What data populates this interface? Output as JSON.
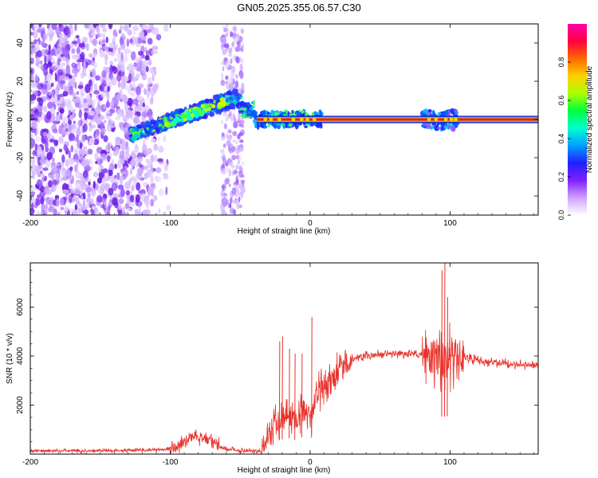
{
  "title": "GN05.2025.355.06.57.C30",
  "colors": {
    "snr_line": "#e8312a",
    "background": "#ffffff",
    "colorbar": [
      "#ff00aa",
      "#ff0040",
      "#ff6a00",
      "#ffd000",
      "#aaff00",
      "#00ff40",
      "#00ffd0",
      "#00a0ff",
      "#2020ff",
      "#8020ff",
      "#d0a0ff",
      "#ffffff"
    ]
  },
  "chart_data": [
    {
      "type": "heatmap",
      "name": "spectrogram",
      "xlabel": "Height of straight line (km)",
      "ylabel": "Frequency (Hz)",
      "xlim": [
        -200,
        163
      ],
      "ylim": [
        -50,
        50
      ],
      "xticks": [
        -200,
        -100,
        0,
        100
      ],
      "xtick_labels": [
        "-200",
        "-100",
        "0",
        "100"
      ],
      "yticks": [
        -40,
        -20,
        0,
        20,
        40
      ],
      "ytick_labels": [
        "-40",
        "-20",
        "0",
        "20",
        "40"
      ],
      "colorbar": {
        "label": "Normalized spectral amplitude",
        "range": [
          0,
          1
        ],
        "ticks": [
          0.0,
          0.2,
          0.4,
          0.6,
          0.8
        ],
        "tick_labels": [
          "0.0",
          "0.2",
          "0.4",
          "0.6",
          "0.8"
        ]
      },
      "features": {
        "noise_region_x": [
          -200,
          -105
        ],
        "noise_band_x": [
          -63,
          -48
        ],
        "rising_track": {
          "x": [
            -128,
            -50
          ],
          "y": [
            -8,
            12
          ]
        },
        "carrier_line": {
          "x": [
            -50,
            163
          ],
          "y": 0
        }
      }
    },
    {
      "type": "line",
      "name": "snr",
      "xlabel": "Height of straight line (km)",
      "ylabel": "SNR (10 * v/v)",
      "xlim": [
        -200,
        163
      ],
      "ylim": [
        0,
        7800
      ],
      "xticks": [
        -200,
        -100,
        0,
        100
      ],
      "xtick_labels": [
        "-200",
        "-100",
        "0",
        "100"
      ],
      "yticks": [
        2000,
        4000,
        6000
      ],
      "ytick_labels": [
        "2000",
        "4000",
        "6000"
      ],
      "series": [
        {
          "name": "SNR",
          "x": [
            -200,
            -180,
            -160,
            -140,
            -120,
            -110,
            -100,
            -95,
            -90,
            -85,
            -80,
            -75,
            -70,
            -65,
            -60,
            -55,
            -50,
            -45,
            -40,
            -35,
            -30,
            -25,
            -20,
            -15,
            -10,
            -5,
            0,
            5,
            10,
            20,
            30,
            40,
            50,
            60,
            70,
            80,
            90,
            95,
            100,
            105,
            110,
            120,
            130,
            140,
            150,
            163
          ],
          "y": [
            120,
            140,
            130,
            150,
            160,
            170,
            200,
            300,
            500,
            700,
            750,
            600,
            500,
            300,
            200,
            180,
            150,
            160,
            140,
            120,
            900,
            1300,
            1500,
            1600,
            1400,
            1800,
            1500,
            2400,
            2800,
            3300,
            3900,
            4000,
            4050,
            4100,
            4100,
            4050,
            4000,
            3800,
            3900,
            4000,
            3950,
            3800,
            3750,
            3700,
            3650,
            3600
          ]
        }
      ],
      "spikes": [
        {
          "x": -22,
          "y": 4600
        },
        {
          "x": -20,
          "y": 4800
        },
        {
          "x": -15,
          "y": 4300
        },
        {
          "x": -11,
          "y": 4100
        },
        {
          "x": -6,
          "y": 4100
        },
        {
          "x": 1,
          "y": 5600
        },
        {
          "x": 94,
          "y": 7500
        },
        {
          "x": 96,
          "y": 7800
        },
        {
          "x": 98,
          "y": 6400
        }
      ]
    }
  ]
}
